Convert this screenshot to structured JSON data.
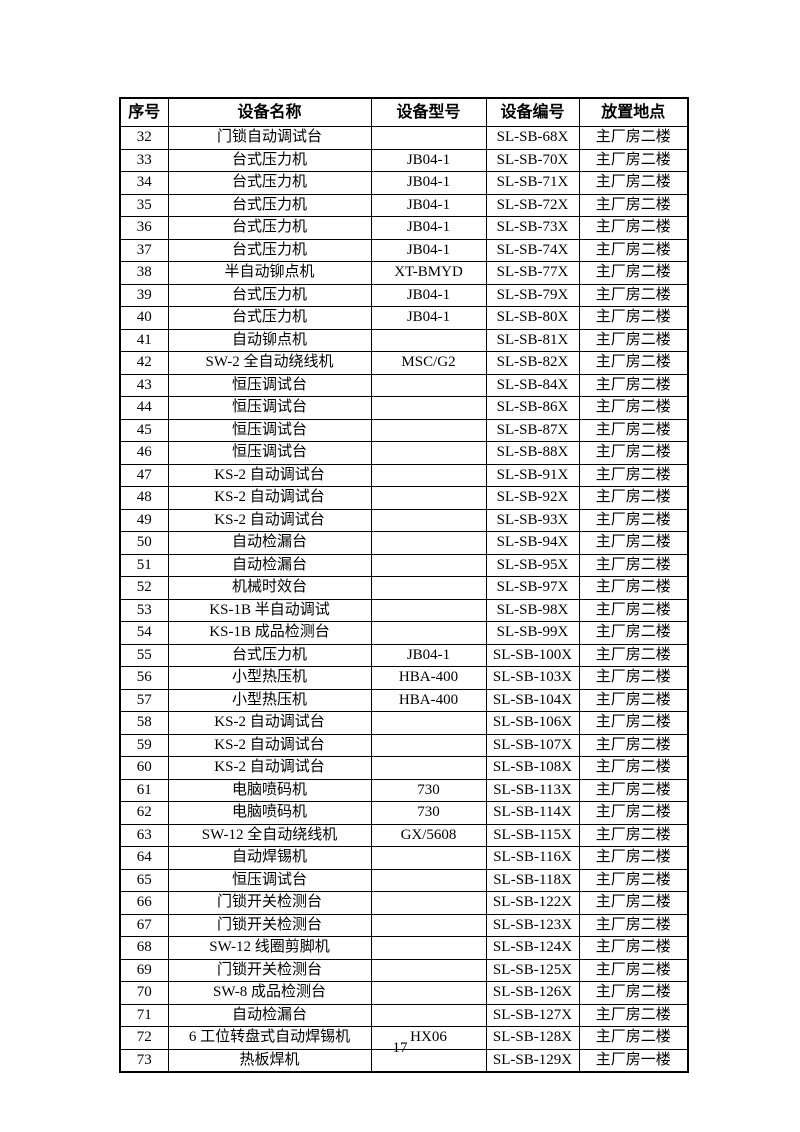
{
  "page": {
    "number": "17"
  },
  "table": {
    "columns": [
      "序号",
      "设备名称",
      "设备型号",
      "设备编号",
      "放置地点"
    ],
    "rows": [
      [
        "32",
        "门锁自动调试台",
        "",
        "SL-SB-68X",
        "主厂房二楼"
      ],
      [
        "33",
        "台式压力机",
        "JB04-1",
        "SL-SB-70X",
        "主厂房二楼"
      ],
      [
        "34",
        "台式压力机",
        "JB04-1",
        "SL-SB-71X",
        "主厂房二楼"
      ],
      [
        "35",
        "台式压力机",
        "JB04-1",
        "SL-SB-72X",
        "主厂房二楼"
      ],
      [
        "36",
        "台式压力机",
        "JB04-1",
        "SL-SB-73X",
        "主厂房二楼"
      ],
      [
        "37",
        "台式压力机",
        "JB04-1",
        "SL-SB-74X",
        "主厂房二楼"
      ],
      [
        "38",
        "半自动铆点机",
        "XT-BMYD",
        "SL-SB-77X",
        "主厂房二楼"
      ],
      [
        "39",
        "台式压力机",
        "JB04-1",
        "SL-SB-79X",
        "主厂房二楼"
      ],
      [
        "40",
        "台式压力机",
        "JB04-1",
        "SL-SB-80X",
        "主厂房二楼"
      ],
      [
        "41",
        "自动铆点机",
        "",
        "SL-SB-81X",
        "主厂房二楼"
      ],
      [
        "42",
        "SW-2 全自动绕线机",
        "MSC/G2",
        "SL-SB-82X",
        "主厂房二楼"
      ],
      [
        "43",
        "恒压调试台",
        "",
        "SL-SB-84X",
        "主厂房二楼"
      ],
      [
        "44",
        "恒压调试台",
        "",
        "SL-SB-86X",
        "主厂房二楼"
      ],
      [
        "45",
        "恒压调试台",
        "",
        "SL-SB-87X",
        "主厂房二楼"
      ],
      [
        "46",
        "恒压调试台",
        "",
        "SL-SB-88X",
        "主厂房二楼"
      ],
      [
        "47",
        "KS-2 自动调试台",
        "",
        "SL-SB-91X",
        "主厂房二楼"
      ],
      [
        "48",
        "KS-2 自动调试台",
        "",
        "SL-SB-92X",
        "主厂房二楼"
      ],
      [
        "49",
        "KS-2 自动调试台",
        "",
        "SL-SB-93X",
        "主厂房二楼"
      ],
      [
        "50",
        "自动检漏台",
        "",
        "SL-SB-94X",
        "主厂房二楼"
      ],
      [
        "51",
        "自动检漏台",
        "",
        "SL-SB-95X",
        "主厂房二楼"
      ],
      [
        "52",
        "机械时效台",
        "",
        "SL-SB-97X",
        "主厂房二楼"
      ],
      [
        "53",
        "KS-1B 半自动调试",
        "",
        "SL-SB-98X",
        "主厂房二楼"
      ],
      [
        "54",
        "KS-1B 成品检测台",
        "",
        "SL-SB-99X",
        "主厂房二楼"
      ],
      [
        "55",
        "台式压力机",
        "JB04-1",
        "SL-SB-100X",
        "主厂房二楼"
      ],
      [
        "56",
        "小型热压机",
        "HBA-400",
        "SL-SB-103X",
        "主厂房二楼"
      ],
      [
        "57",
        "小型热压机",
        "HBA-400",
        "SL-SB-104X",
        "主厂房二楼"
      ],
      [
        "58",
        "KS-2 自动调试台",
        "",
        "SL-SB-106X",
        "主厂房二楼"
      ],
      [
        "59",
        "KS-2 自动调试台",
        "",
        "SL-SB-107X",
        "主厂房二楼"
      ],
      [
        "60",
        "KS-2 自动调试台",
        "",
        "SL-SB-108X",
        "主厂房二楼"
      ],
      [
        "61",
        "电脑喷码机",
        "730",
        "SL-SB-113X",
        "主厂房二楼"
      ],
      [
        "62",
        "电脑喷码机",
        "730",
        "SL-SB-114X",
        "主厂房二楼"
      ],
      [
        "63",
        "SW-12 全自动绕线机",
        "GX/5608",
        "SL-SB-115X",
        "主厂房二楼"
      ],
      [
        "64",
        "自动焊锡机",
        "",
        "SL-SB-116X",
        "主厂房二楼"
      ],
      [
        "65",
        "恒压调试台",
        "",
        "SL-SB-118X",
        "主厂房二楼"
      ],
      [
        "66",
        "门锁开关检测台",
        "",
        "SL-SB-122X",
        "主厂房二楼"
      ],
      [
        "67",
        "门锁开关检测台",
        "",
        "SL-SB-123X",
        "主厂房二楼"
      ],
      [
        "68",
        "SW-12 线圈剪脚机",
        "",
        "SL-SB-124X",
        "主厂房二楼"
      ],
      [
        "69",
        "门锁开关检测台",
        "",
        "SL-SB-125X",
        "主厂房二楼"
      ],
      [
        "70",
        "SW-8 成品检测台",
        "",
        "SL-SB-126X",
        "主厂房二楼"
      ],
      [
        "71",
        "自动检漏台",
        "",
        "SL-SB-127X",
        "主厂房二楼"
      ],
      [
        "72",
        "6 工位转盘式自动焊锡机",
        "HX06",
        "SL-SB-128X",
        "主厂房二楼"
      ],
      [
        "73",
        "热板焊机",
        "",
        "SL-SB-129X",
        "主厂房一楼"
      ]
    ]
  }
}
